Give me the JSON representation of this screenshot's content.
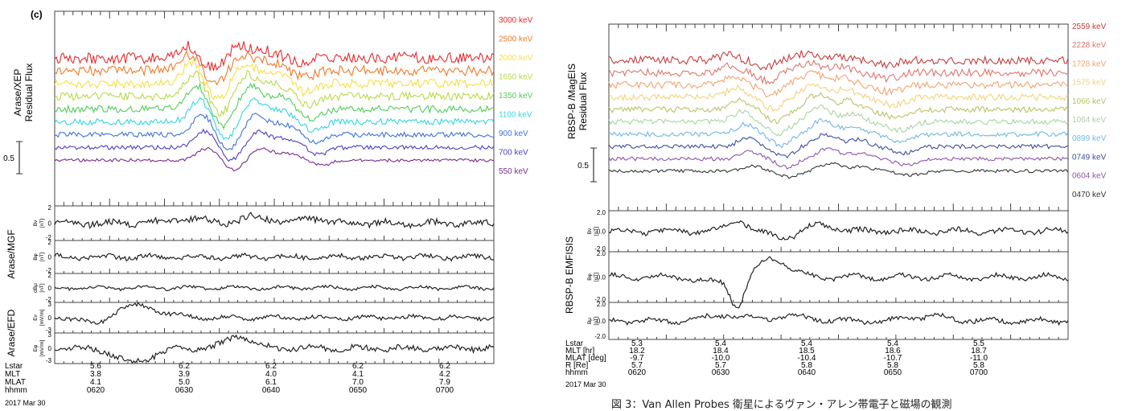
{
  "chart_data": [
    {
      "type": "line",
      "panel_label": "(c)",
      "flux": {
        "ylabel": [
          "Arase/XEP",
          "Residual Flux"
        ],
        "scale_bar_label": "0.5",
        "series": [
          {
            "name": "3000 keV",
            "color": "#e8292b"
          },
          {
            "name": "2500 keV",
            "color": "#f07a2a"
          },
          {
            "name": "2000 keV",
            "color": "#f6df46"
          },
          {
            "name": "1650 keV",
            "color": "#b9d94a"
          },
          {
            "name": "1350 keV",
            "color": "#4fce58"
          },
          {
            "name": "1100 keV",
            "color": "#33d6e4"
          },
          {
            "name": "900 keV",
            "color": "#3e72d8"
          },
          {
            "name": "700 keV",
            "color": "#4a3fc7"
          },
          {
            "name": "550 keV",
            "color": "#7a2b8f"
          }
        ]
      },
      "field_groups": [
        {
          "label": "Arase/MGF",
          "panels": 3
        },
        {
          "label": "Arase/EFD",
          "panels": 2
        }
      ],
      "field_panels": [
        {
          "ylabel": [
            "Bν",
            "[nT]"
          ],
          "ticks": [
            "2",
            "0",
            "-2"
          ]
        },
        {
          "ylabel": [
            "Bφ",
            "[nT]"
          ],
          "ticks": [
            "2",
            "0",
            "-2"
          ]
        },
        {
          "ylabel": [
            "dBμ",
            "[nT]"
          ],
          "ticks": [
            "2",
            "0",
            "-2"
          ]
        },
        {
          "ylabel": [
            "Eν",
            "[mV/m]"
          ],
          "ticks": [
            "3",
            "0",
            "-3"
          ]
        },
        {
          "ylabel": [
            "Eφ",
            "[mV/m]"
          ],
          "ticks": [
            "3",
            "0",
            "-3"
          ]
        }
      ],
      "ephemeris": {
        "row_labels": [
          "Lstar",
          "MLT",
          "MLAT",
          "hhmm"
        ],
        "columns": [
          [
            "5.6",
            "3.8",
            "4.1",
            "0620"
          ],
          [
            "6.2",
            "3.9",
            "5.0",
            "0630"
          ],
          [
            "6.2",
            "4.0",
            "6.1",
            "0640"
          ],
          [
            "6.2",
            "4.1",
            "7.0",
            "0650"
          ],
          [
            "6.2",
            "4.2",
            "7.9",
            "0700"
          ]
        ],
        "date": "2017 Mar 30"
      }
    },
    {
      "type": "line",
      "flux": {
        "ylabel": [
          "RBSP-B /MagEIS",
          "Residual Flux"
        ],
        "scale_bar_label": "0.5",
        "series": [
          {
            "name": "2559 keV",
            "color": "#c73a3f"
          },
          {
            "name": "2228 keV",
            "color": "#e0746e"
          },
          {
            "name": "1728 keV",
            "color": "#f3a36e"
          },
          {
            "name": "1575 keV",
            "color": "#f4d27a"
          },
          {
            "name": "1066 keV",
            "color": "#b7c465"
          },
          {
            "name": "1064 keV",
            "color": "#a9d4a3"
          },
          {
            "name": "0899 keV",
            "color": "#72b7e0"
          },
          {
            "name": "0749 keV",
            "color": "#3c4d9e"
          },
          {
            "name": "0604 keV",
            "color": "#8e55a8"
          },
          {
            "name": "0470 keV",
            "color": "#333333"
          }
        ]
      },
      "field_groups": [
        {
          "label": "RBSP-B EMFISIS",
          "panels": 3
        }
      ],
      "field_panels": [
        {
          "ylabel": [
            "Bν",
            "[nT]"
          ],
          "ticks": [
            "2.0",
            "0.0",
            "-2.0"
          ]
        },
        {
          "ylabel": [
            "Bφ",
            "[nT]"
          ],
          "ticks": [
            "2.0",
            "0.0",
            "-2.0"
          ]
        },
        {
          "ylabel": [
            "Bμ",
            "[nT]"
          ],
          "ticks": [
            "2.0",
            "0.0",
            "-2.0"
          ]
        }
      ],
      "ephemeris": {
        "row_labels": [
          "Lstar",
          "MLT [hr]",
          "MLAT [deg]",
          "R [Re]",
          "hhmm"
        ],
        "columns": [
          [
            "5.3",
            "18.2",
            "-9.7",
            "5.7",
            "0620"
          ],
          [
            "5.4",
            "18.4",
            "-10.0",
            "5.7",
            "0630"
          ],
          [
            "5.4",
            "18.5",
            "-10.4",
            "5.8",
            "0640"
          ],
          [
            "5.4",
            "18.6",
            "-10.7",
            "5.8",
            "0650"
          ],
          [
            "5.5",
            "18.7",
            "-11.0",
            "5.8",
            "0700"
          ]
        ],
        "date": "2017 Mar 30"
      }
    }
  ],
  "caption": "図 3：Van Allen Probes 衛星によるヴァン・アレン帯電子と磁場の観測"
}
